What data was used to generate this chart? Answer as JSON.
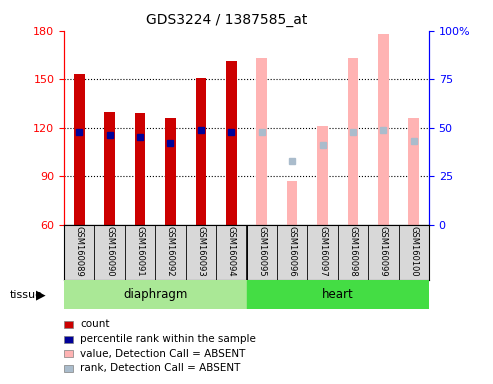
{
  "title": "GDS3224 / 1387585_at",
  "samples": [
    "GSM160089",
    "GSM160090",
    "GSM160091",
    "GSM160092",
    "GSM160093",
    "GSM160094",
    "GSM160095",
    "GSM160096",
    "GSM160097",
    "GSM160098",
    "GSM160099",
    "GSM160100"
  ],
  "detection_call": [
    "P",
    "P",
    "P",
    "P",
    "P",
    "P",
    "A",
    "A",
    "A",
    "A",
    "A",
    "A"
  ],
  "value": [
    153,
    130,
    129,
    126,
    151,
    161,
    163,
    87,
    121,
    163,
    178,
    126
  ],
  "rank_pct": [
    48,
    46,
    45,
    42,
    49,
    48,
    48,
    33,
    41,
    48,
    49,
    43
  ],
  "ylim_left": [
    60,
    180
  ],
  "ylim_right": [
    0,
    100
  ],
  "yticks_left": [
    60,
    90,
    120,
    150,
    180
  ],
  "yticks_right": [
    0,
    25,
    50,
    75,
    100
  ],
  "bar_width": 0.35,
  "color_present_value": "#cc0000",
  "color_present_rank": "#000099",
  "color_absent_value": "#ffb3b3",
  "color_absent_rank": "#aabccc",
  "diaphragm_color": "#aae896",
  "heart_color": "#44dd44",
  "legend_items": [
    {
      "color": "#cc0000",
      "label": "count"
    },
    {
      "color": "#000099",
      "label": "percentile rank within the sample"
    },
    {
      "color": "#ffb3b3",
      "label": "value, Detection Call = ABSENT"
    },
    {
      "color": "#aabccc",
      "label": "rank, Detection Call = ABSENT"
    }
  ]
}
